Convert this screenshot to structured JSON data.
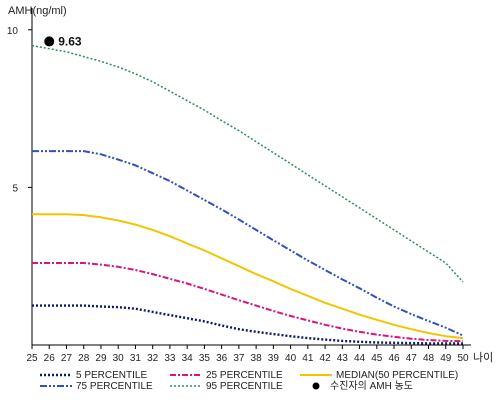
{
  "chart_data": {
    "type": "line",
    "title": "",
    "ylabel": "AMH(ng/ml)",
    "xlabel": "나이",
    "xlim": [
      25,
      50
    ],
    "ylim": [
      0,
      10.5
    ],
    "yticks": [
      5,
      10
    ],
    "x": [
      25,
      26,
      27,
      28,
      29,
      30,
      31,
      32,
      33,
      34,
      35,
      36,
      37,
      38,
      39,
      40,
      41,
      42,
      43,
      44,
      45,
      46,
      47,
      48,
      49,
      50
    ],
    "grid": false,
    "legend_position": "bottom",
    "series": [
      {
        "name": "5 PERCENTILE",
        "color": "#0a1a6b",
        "dash": "2,2",
        "width": 2.4,
        "values": [
          1.25,
          1.25,
          1.25,
          1.25,
          1.22,
          1.2,
          1.15,
          1.05,
          0.95,
          0.85,
          0.75,
          0.62,
          0.5,
          0.42,
          0.35,
          0.28,
          0.22,
          0.17,
          0.13,
          0.1,
          0.08,
          0.07,
          0.06,
          0.05,
          0.05,
          0.05
        ]
      },
      {
        "name": "25 PERCENTILE",
        "color": "#d6157f",
        "dash": "6,2,2,2",
        "width": 2,
        "values": [
          2.6,
          2.6,
          2.6,
          2.6,
          2.55,
          2.48,
          2.38,
          2.25,
          2.1,
          1.95,
          1.78,
          1.6,
          1.42,
          1.25,
          1.08,
          0.92,
          0.78,
          0.64,
          0.52,
          0.42,
          0.33,
          0.26,
          0.2,
          0.16,
          0.13,
          0.12
        ]
      },
      {
        "name": "MEDIAN(50 PERCENTILE)",
        "color": "#f2c500",
        "dash": "",
        "width": 2,
        "values": [
          4.15,
          4.15,
          4.15,
          4.12,
          4.05,
          3.95,
          3.82,
          3.65,
          3.45,
          3.22,
          3.0,
          2.75,
          2.5,
          2.25,
          2.02,
          1.78,
          1.56,
          1.34,
          1.15,
          0.96,
          0.8,
          0.64,
          0.5,
          0.38,
          0.28,
          0.22
        ]
      },
      {
        "name": "75 PERCENTILE",
        "color": "#3050c0",
        "dash": "7,2,2,2,2,2",
        "width": 2,
        "values": [
          6.15,
          6.15,
          6.15,
          6.15,
          6.05,
          5.88,
          5.7,
          5.45,
          5.2,
          4.9,
          4.6,
          4.3,
          3.98,
          3.65,
          3.32,
          3.0,
          2.68,
          2.38,
          2.08,
          1.8,
          1.5,
          1.22,
          0.98,
          0.76,
          0.55,
          0.3
        ]
      },
      {
        "name": "95 PERCENTILE",
        "color": "#2e8b57",
        "dash": "2,2",
        "width": 1.5,
        "values": [
          9.5,
          9.4,
          9.3,
          9.15,
          9.0,
          8.82,
          8.6,
          8.35,
          8.05,
          7.75,
          7.45,
          7.12,
          6.8,
          6.45,
          6.1,
          5.75,
          5.4,
          5.05,
          4.7,
          4.35,
          4.0,
          3.65,
          3.3,
          2.95,
          2.6,
          2.0
        ]
      }
    ],
    "marker": {
      "name": "수진자의 AMH 농도",
      "x": 26,
      "y": 9.63,
      "label": "9.63",
      "color": "#000000"
    }
  }
}
